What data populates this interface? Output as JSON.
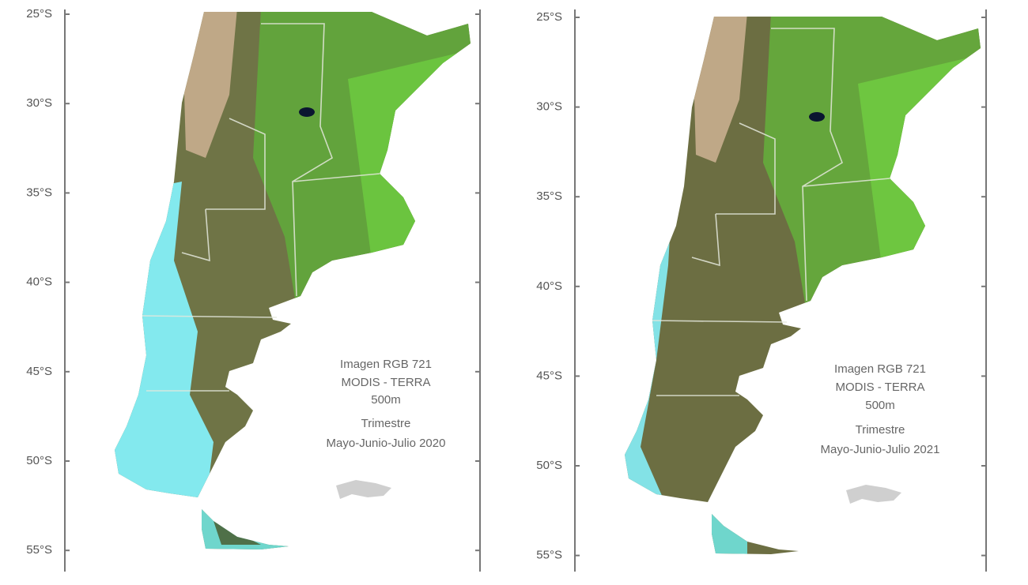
{
  "panels": [
    {
      "latitude_labels": [
        "25°S",
        "30°S",
        "35°S",
        "40°S",
        "45°S",
        "50°S",
        "55°S"
      ],
      "caption": [
        "Imagen RGB 721",
        "MODIS - TERRA",
        "500m",
        "Trimestre",
        "Mayo-Junio-Julio 2020"
      ]
    },
    {
      "latitude_labels": [
        "25°S",
        "30°S",
        "35°S",
        "40°S",
        "45°S",
        "50°S",
        "55°S"
      ],
      "caption": [
        "Imagen RGB 721",
        "MODIS - TERRA",
        "500m",
        "Trimestre",
        "Mayo-Junio-Julio 2021"
      ]
    }
  ]
}
